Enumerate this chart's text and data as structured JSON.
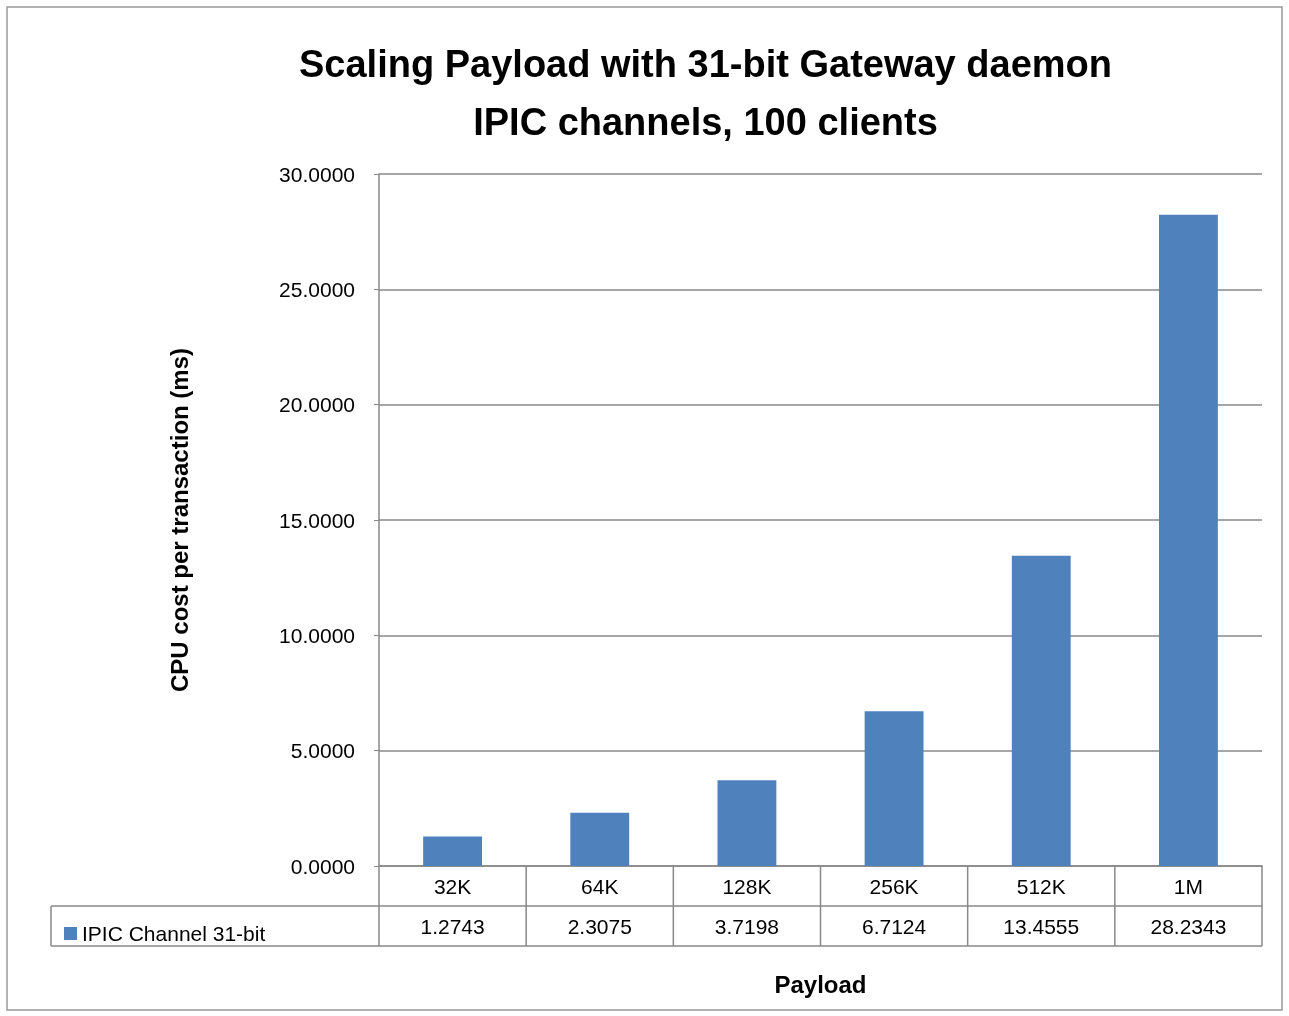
{
  "chart_data": {
    "type": "bar",
    "title": "Scaling Payload with 31-bit Gateway daemon\nIPIC channels, 100 clients",
    "xlabel": "Payload",
    "ylabel": "CPU cost per transaction (ms)",
    "categories": [
      "32K",
      "64K",
      "128K",
      "256K",
      "512K",
      "1M"
    ],
    "series": [
      {
        "name": "IPIC Channel 31-bit",
        "color": "#4f81bd",
        "values": [
          1.2743,
          2.3075,
          3.7198,
          6.7124,
          13.4555,
          28.2343
        ]
      }
    ],
    "ylim": [
      0,
      30
    ],
    "yticks": [
      {
        "value": 0,
        "label": "0.0000"
      },
      {
        "value": 5,
        "label": "5.0000"
      },
      {
        "value": 10,
        "label": "10.0000"
      },
      {
        "value": 15,
        "label": "15.0000"
      },
      {
        "value": 20,
        "label": "20.0000"
      },
      {
        "value": 25,
        "label": "25.0000"
      },
      {
        "value": 30,
        "label": "30.0000"
      }
    ],
    "grid": "y",
    "legend": "bottom left",
    "data_labels": true
  }
}
